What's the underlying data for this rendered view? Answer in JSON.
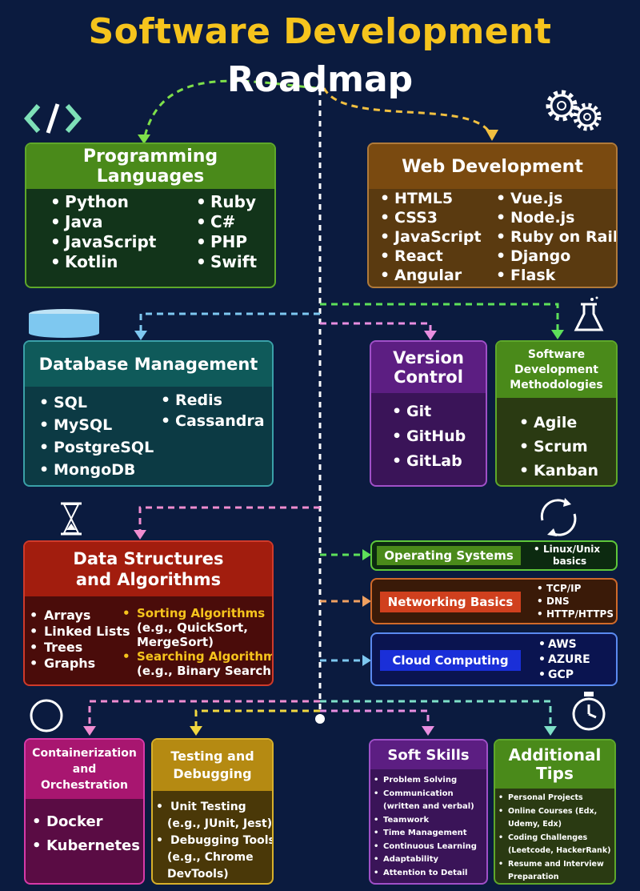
{
  "title": {
    "line1": "Software Development",
    "line2": "Roadmap"
  },
  "programming_languages": {
    "heading": "Programming Languages",
    "col1": [
      "Python",
      "Java",
      "JavaScript",
      "Kotlin"
    ],
    "col2": [
      "Ruby",
      "C#",
      "PHP",
      "Swift"
    ]
  },
  "web_development": {
    "heading": "Web Development",
    "col1": [
      "HTML5",
      "CSS3",
      "JavaScript",
      "React",
      "Angular"
    ],
    "col2": [
      "Vue.js",
      "Node.js",
      "Ruby on Rails",
      "Django",
      "Flask"
    ]
  },
  "database_management": {
    "heading": "Database Management",
    "col1": [
      "SQL",
      "MySQL",
      "PostgreSQL",
      "MongoDB"
    ],
    "col2": [
      "Redis",
      "Cassandra"
    ]
  },
  "version_control": {
    "heading_line1": "Version",
    "heading_line2": "Control",
    "items": [
      "Git",
      "GitHub",
      "GitLab"
    ]
  },
  "methodologies": {
    "heading_line1": "Software",
    "heading_line2": "Development",
    "heading_line3": "Methodologies",
    "items": [
      "Agile",
      "Scrum",
      "Kanban"
    ]
  },
  "dsa": {
    "heading_line1": "Data Structures",
    "heading_line2": "and Algorithms",
    "col1": [
      "Arrays",
      "Linked Lists",
      "Trees",
      "Graphs"
    ],
    "sorting": "Sorting Algorithms",
    "sorting_eg1": "(e.g., QuickSort,",
    "sorting_eg2": "MergeSort)",
    "searching": "Searching Algorithms",
    "searching_eg": "(e.g., Binary Search)"
  },
  "operating_systems": {
    "label": "Operating Systems",
    "items": [
      "Linux/Unix",
      "basics"
    ]
  },
  "networking": {
    "label": "Networking Basics",
    "items": [
      "TCP/IP",
      "DNS",
      "HTTP/HTTPS"
    ]
  },
  "cloud": {
    "label": "Cloud Computing",
    "items": [
      "AWS",
      "AZURE",
      "GCP"
    ]
  },
  "containerization": {
    "heading_line1": "Containerization",
    "heading_line2": "and",
    "heading_line3": "Orchestration",
    "items": [
      "Docker",
      "Kubernetes"
    ]
  },
  "testing": {
    "heading_line1": "Testing and",
    "heading_line2": "Debugging",
    "item1": "Unit Testing",
    "item1_eg": "(e.g., JUnit, Jest)",
    "item2": "Debugging Tools",
    "item2_eg1": "(e.g., Chrome",
    "item2_eg2": "DevTools)"
  },
  "soft_skills": {
    "heading": "Soft Skills",
    "items": [
      "Problem Solving",
      "Communication",
      "(written and verbal)",
      "Teamwork",
      "Time Management",
      "Continuous Learning",
      "Adaptability",
      "Attention to Detail"
    ]
  },
  "additional_tips": {
    "heading_line1": "Additional",
    "heading_line2": "Tips",
    "items": [
      "Personal Projects",
      "Online Courses (Edx,",
      "Udemy, Edx)",
      "Coding Challenges",
      "(Leetcode, HackerRank)",
      "Resume and Interview",
      "Preparation"
    ]
  },
  "colors": {
    "title": "#f6c41d",
    "background": "#0b1b3f",
    "green": "#4a8a1a",
    "brown": "#7a4a10",
    "teal": "#0f5a5a",
    "purple": "#5c1e82",
    "red": "#a21d0e",
    "blue": "#1a2fd8",
    "pink": "#a81670",
    "gold": "#b58a12"
  },
  "icons": [
    "code-icon",
    "gears-icon",
    "database-icon",
    "flask-icon",
    "hourglass-icon",
    "cycle-icon",
    "circle-icon",
    "stopwatch-icon"
  ]
}
